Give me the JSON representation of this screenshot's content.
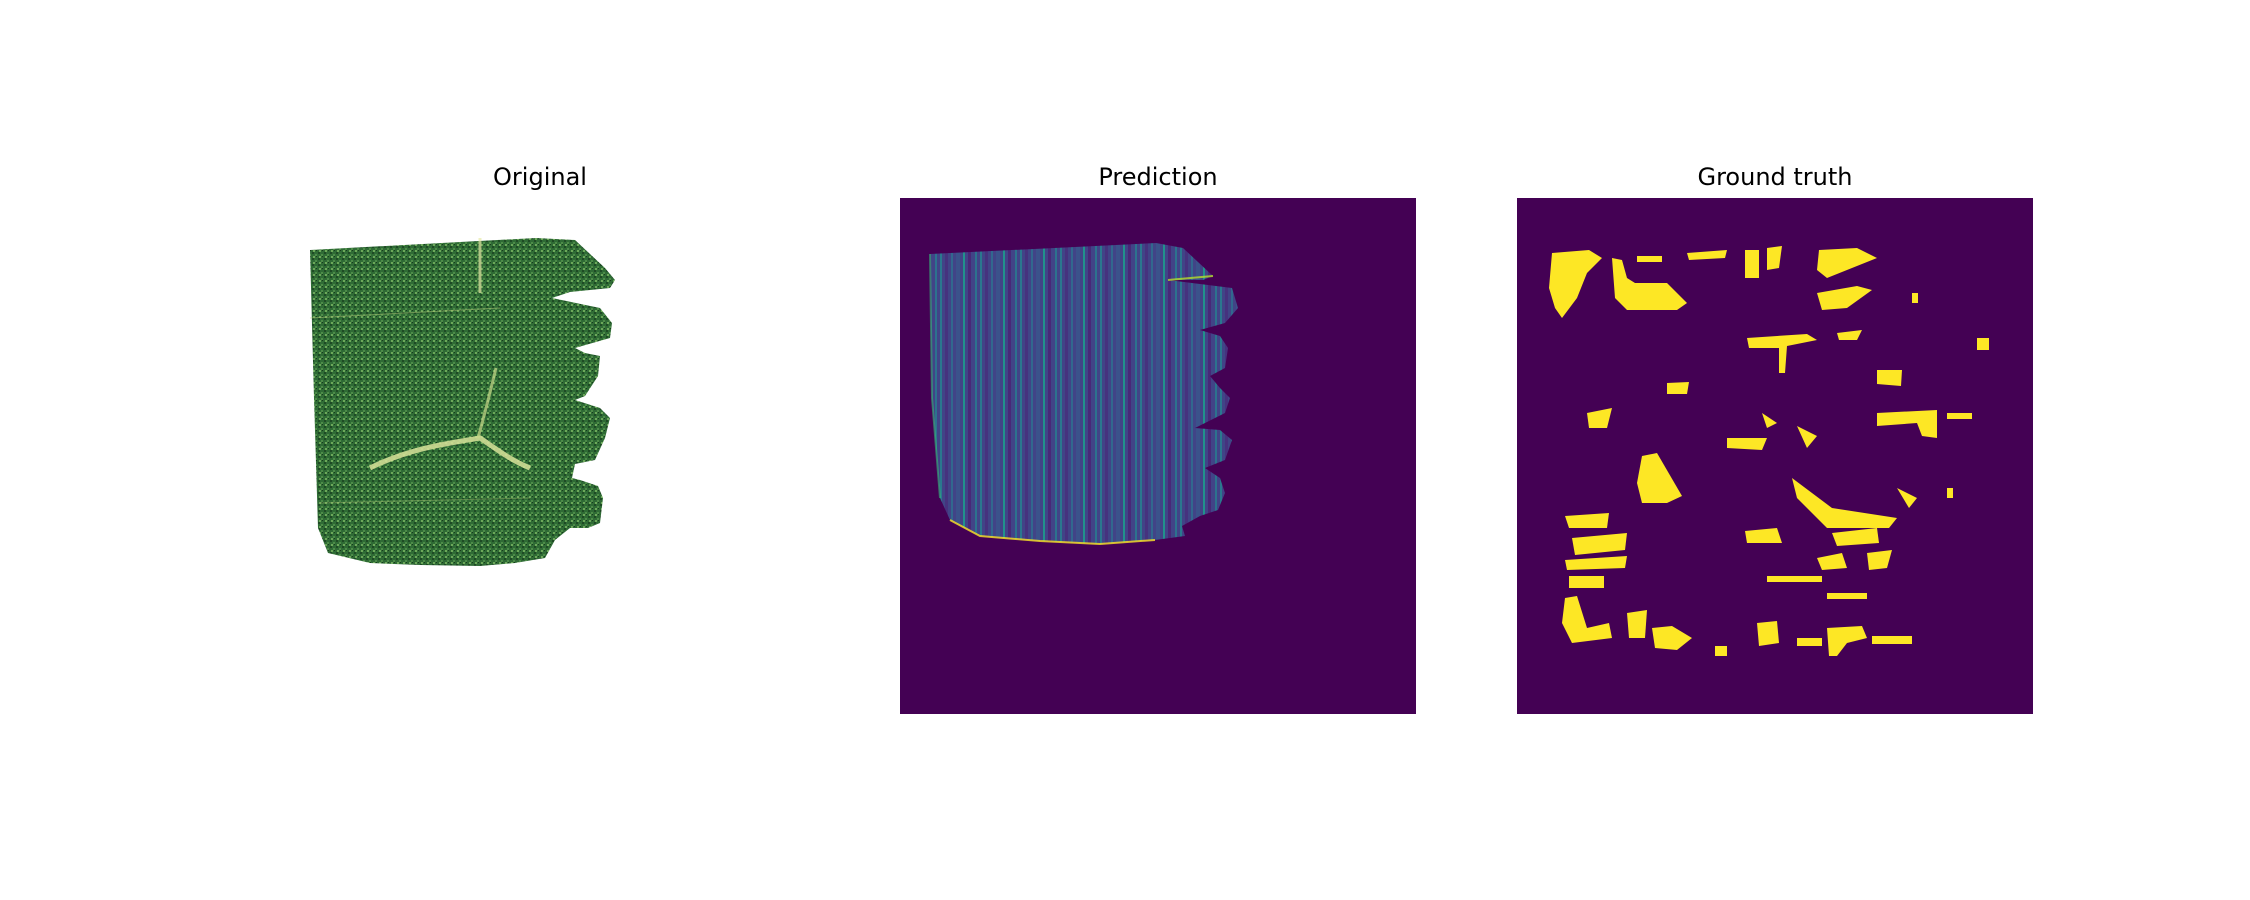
{
  "figure": {
    "panels": [
      {
        "title": "Original"
      },
      {
        "title": "Prediction"
      },
      {
        "title": "Ground truth"
      }
    ],
    "colors": {
      "background": "#ffffff",
      "viridis_low": "#440154",
      "viridis_mid": "#3b528b",
      "viridis_teal": "#21918c",
      "viridis_high": "#fde725",
      "vegetation_dark": "#1f4a22",
      "vegetation_light": "#6fae55"
    }
  }
}
